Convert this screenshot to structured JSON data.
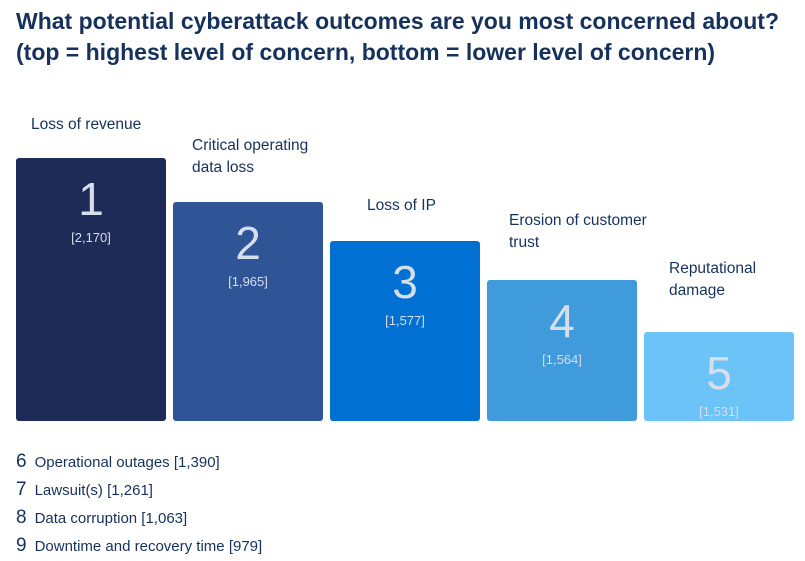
{
  "title": "What potential cyberattack outcomes are you most concerned about? (top = highest level of concern, bottom = lower level of concern)",
  "chart_data": {
    "type": "bar",
    "title": "What potential cyberattack outcomes are you most concerned about? (top = highest level of concern, bottom = lower level of concern)",
    "categories": [
      "Loss of revenue",
      "Critical operating data loss",
      "Loss of IP",
      "Erosion of customer trust",
      "Reputational damage"
    ],
    "ranks": [
      "1",
      "2",
      "3",
      "4",
      "5"
    ],
    "values": [
      2170,
      1965,
      1577,
      1564,
      1531
    ],
    "value_labels": [
      "[2,170]",
      "[1,965]",
      "[1,577]",
      "[1,564]",
      "[1,531]"
    ],
    "colors": [
      "#1f2b57",
      "#2f5597",
      "#0070d2",
      "#3f9bdb",
      "#6cc3f7"
    ],
    "grid": false,
    "legend": "none"
  },
  "others": [
    {
      "rank": "6",
      "label": "Operational outages [1,390]"
    },
    {
      "rank": "7",
      "label": "Lawsuit(s) [1,261]"
    },
    {
      "rank": "8",
      "label": "Data corruption [1,063]"
    },
    {
      "rank": "9",
      "label": "Downtime and recovery time [979]"
    }
  ]
}
